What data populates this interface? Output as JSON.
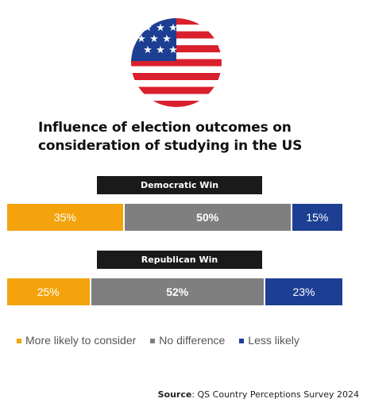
{
  "title_lines": [
    "Influence of election outcomes on",
    "consideration of studying in the US"
  ],
  "source": {
    "label": "Source",
    "text": ": QS Country Perceptions Survey 2024"
  },
  "colors": {
    "more_likely": "#f4a30c",
    "no_difference": "#7f7f7f",
    "less_likely": "#1d3f93",
    "label_bg": "#1a1a1a"
  },
  "chart_data": {
    "type": "bar",
    "orientation": "horizontal-stacked-100",
    "title": "Influence of election outcomes on consideration of studying in the US",
    "categories": [
      "Democratic Win",
      "Republican Win"
    ],
    "series": [
      {
        "name": "More likely to consider",
        "values": [
          35,
          25
        ],
        "labels": [
          "35%",
          "25%"
        ]
      },
      {
        "name": "No difference",
        "values": [
          50,
          52
        ],
        "labels": [
          "50%",
          "52%"
        ]
      },
      {
        "name": "Less likely",
        "values": [
          15,
          23
        ],
        "labels": [
          "15%",
          "23%"
        ]
      }
    ],
    "legend": "bottom",
    "grid": false
  }
}
